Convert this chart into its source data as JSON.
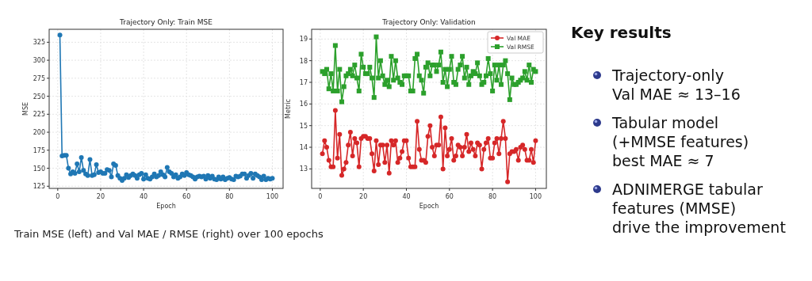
{
  "chart_data": [
    {
      "type": "line",
      "title": "Trajectory Only: Train MSE",
      "xlabel": "Epoch",
      "ylabel": "MSE",
      "marker": "circle",
      "grid": true,
      "xlim": [
        -4,
        105
      ],
      "xticks": [
        0,
        20,
        40,
        60,
        80,
        100
      ],
      "ylim": [
        122,
        343
      ],
      "yticks": [
        125,
        150,
        175,
        200,
        225,
        250,
        275,
        300,
        325
      ],
      "x": [
        1,
        2,
        3,
        4,
        5,
        6,
        7,
        8,
        9,
        10,
        11,
        12,
        13,
        14,
        15,
        16,
        17,
        18,
        19,
        20,
        21,
        22,
        23,
        24,
        25,
        26,
        27,
        28,
        29,
        30,
        31,
        32,
        33,
        34,
        35,
        36,
        37,
        38,
        39,
        40,
        41,
        42,
        43,
        44,
        45,
        46,
        47,
        48,
        49,
        50,
        51,
        52,
        53,
        54,
        55,
        56,
        57,
        58,
        59,
        60,
        61,
        62,
        63,
        64,
        65,
        66,
        67,
        68,
        69,
        70,
        71,
        72,
        73,
        74,
        75,
        76,
        77,
        78,
        79,
        80,
        81,
        82,
        83,
        84,
        85,
        86,
        87,
        88,
        89,
        90,
        91,
        92,
        93,
        94,
        95,
        96,
        97,
        98,
        99,
        100
      ],
      "series": [
        {
          "color": "#1f77b4",
          "values": [
            335,
            167,
            168,
            168,
            150,
            142,
            145,
            143,
            156,
            145,
            165,
            147,
            142,
            140,
            162,
            140,
            141,
            155,
            144,
            145,
            143,
            143,
            148,
            147,
            138,
            156,
            154,
            140,
            136,
            133,
            136,
            141,
            137,
            140,
            142,
            140,
            136,
            141,
            143,
            135,
            141,
            136,
            135,
            138,
            142,
            138,
            140,
            145,
            141,
            138,
            151,
            145,
            143,
            138,
            141,
            136,
            138,
            142,
            140,
            144,
            141,
            140,
            138,
            135,
            138,
            139,
            138,
            139,
            135,
            140,
            136,
            139,
            135,
            134,
            138,
            135,
            138,
            134,
            136,
            137,
            135,
            134,
            139,
            138,
            139,
            142,
            142,
            136,
            140,
            143,
            136,
            142,
            140,
            138,
            134,
            139,
            134,
            136,
            135,
            136
          ]
        }
      ],
      "annotations": [
        "Train MSE (left) and Val MAE / RMSE (right) over 100 epochs"
      ]
    },
    {
      "type": "line",
      "title": "Trajectory Only: Validation",
      "xlabel": "Epoch",
      "ylabel": "Metric",
      "grid": true,
      "legend": "top right",
      "xlim": [
        -4,
        105
      ],
      "xticks": [
        0,
        20,
        40,
        60,
        80,
        100
      ],
      "ylim": [
        12.1,
        19.45
      ],
      "yticks": [
        13,
        14,
        15,
        16,
        17,
        18,
        19
      ],
      "x": [
        1,
        2,
        3,
        4,
        5,
        6,
        7,
        8,
        9,
        10,
        11,
        12,
        13,
        14,
        15,
        16,
        17,
        18,
        19,
        20,
        21,
        22,
        23,
        24,
        25,
        26,
        27,
        28,
        29,
        30,
        31,
        32,
        33,
        34,
        35,
        36,
        37,
        38,
        39,
        40,
        41,
        42,
        43,
        44,
        45,
        46,
        47,
        48,
        49,
        50,
        51,
        52,
        53,
        54,
        55,
        56,
        57,
        58,
        59,
        60,
        61,
        62,
        63,
        64,
        65,
        66,
        67,
        68,
        69,
        70,
        71,
        72,
        73,
        74,
        75,
        76,
        77,
        78,
        79,
        80,
        81,
        82,
        83,
        84,
        85,
        86,
        87,
        88,
        89,
        90,
        91,
        92,
        93,
        94,
        95,
        96,
        97,
        98,
        99,
        100
      ],
      "series": [
        {
          "name": "Val MAE",
          "color": "#d62728",
          "marker": "circle",
          "values": [
            13.7,
            14.3,
            14.0,
            13.4,
            13.1,
            13.1,
            15.7,
            13.5,
            14.6,
            12.7,
            13.0,
            13.3,
            14.1,
            14.7,
            13.6,
            14.4,
            14.2,
            13.1,
            14.4,
            14.5,
            14.5,
            14.4,
            14.4,
            13.7,
            12.9,
            14.3,
            13.2,
            14.1,
            14.1,
            13.3,
            14.1,
            12.8,
            14.3,
            14.1,
            14.3,
            13.3,
            13.5,
            13.8,
            14.3,
            14.3,
            13.5,
            13.1,
            13.1,
            13.1,
            15.2,
            13.9,
            13.4,
            13.4,
            13.3,
            14.5,
            15.0,
            14.0,
            13.6,
            14.1,
            14.1,
            15.4,
            13.0,
            14.9,
            13.6,
            13.9,
            14.4,
            13.4,
            13.6,
            14.1,
            14.0,
            13.6,
            14.0,
            14.6,
            13.8,
            14.2,
            13.9,
            13.6,
            14.2,
            14.1,
            13.0,
            13.9,
            14.2,
            14.4,
            13.5,
            13.5,
            14.2,
            14.4,
            13.7,
            14.4,
            15.2,
            14.4,
            12.4,
            13.7,
            13.8,
            13.8,
            13.9,
            13.4,
            14.0,
            14.1,
            13.9,
            13.4,
            13.4,
            13.9,
            13.3,
            14.3
          ]
        },
        {
          "name": "Val RMSE",
          "color": "#2ca02c",
          "marker": "square",
          "values": [
            17.5,
            17.4,
            17.6,
            16.7,
            17.4,
            16.6,
            18.7,
            16.6,
            17.6,
            16.1,
            16.8,
            17.3,
            17.4,
            17.6,
            17.3,
            17.8,
            17.2,
            16.6,
            18.3,
            17.7,
            17.4,
            17.4,
            17.7,
            17.2,
            16.3,
            19.1,
            17.2,
            18.0,
            17.3,
            16.9,
            17.1,
            16.8,
            18.2,
            17.1,
            18.0,
            17.2,
            17.0,
            16.9,
            17.3,
            17.3,
            17.3,
            16.6,
            16.6,
            18.1,
            18.3,
            17.3,
            17.1,
            16.5,
            17.7,
            17.9,
            17.3,
            17.8,
            17.8,
            17.5,
            17.8,
            18.4,
            17.0,
            17.6,
            16.8,
            17.6,
            18.2,
            17.0,
            16.9,
            17.6,
            17.8,
            18.2,
            17.2,
            17.7,
            16.9,
            17.3,
            17.5,
            17.4,
            17.9,
            17.3,
            16.9,
            17.0,
            17.3,
            18.1,
            17.4,
            16.6,
            17.8,
            17.1,
            17.8,
            16.9,
            17.8,
            18.0,
            17.4,
            16.2,
            17.2,
            16.9,
            16.9,
            17.0,
            17.1,
            17.2,
            17.5,
            17.1,
            17.8,
            17.0,
            17.6,
            17.5
          ]
        }
      ]
    },
    {
      "type": "other",
      "title": "Key results",
      "annotations": [
        "Trajectory-only\nVal MAE ≈ 13–16",
        "Tabular model\n(+MMSE features)\nbest MAE ≈ 7",
        "ADNIMERGE tabular\nfeatures (MMSE)\ndrive the improvement"
      ]
    }
  ]
}
